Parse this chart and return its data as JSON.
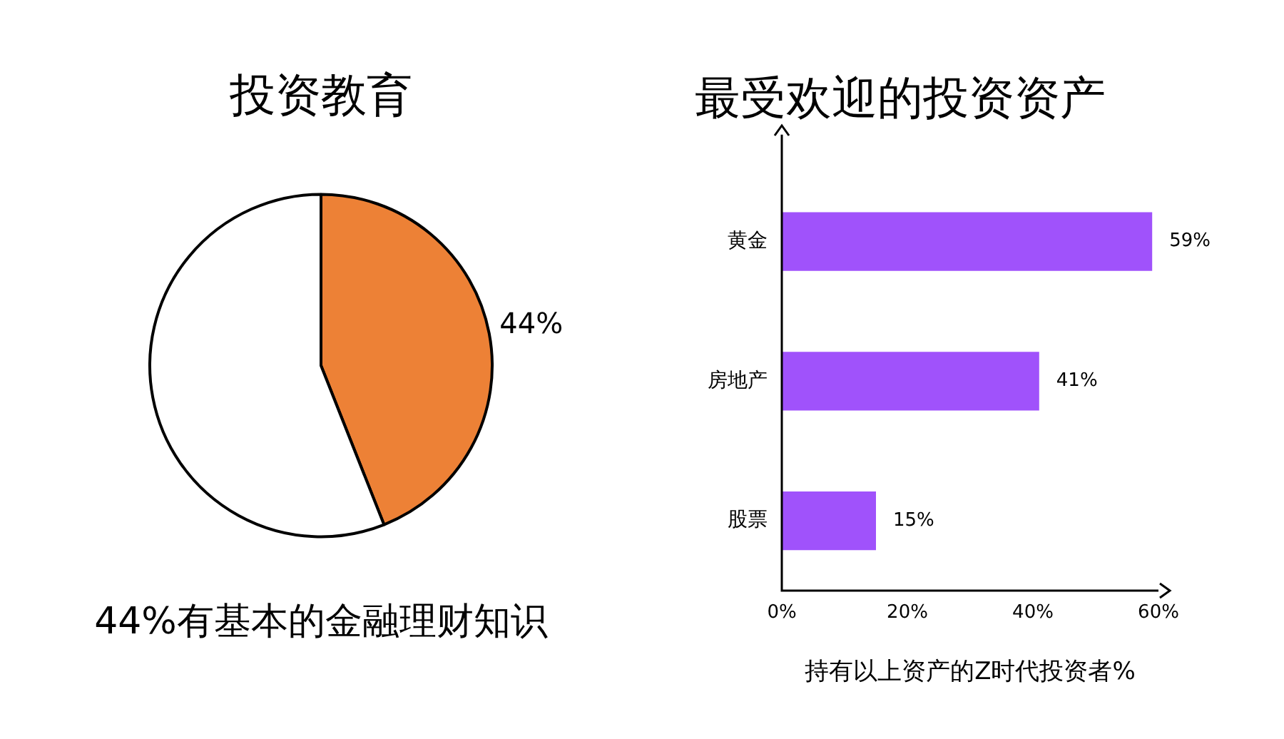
{
  "chart_data": [
    {
      "type": "pie",
      "title": "投资教育",
      "categories": [
        null,
        null
      ],
      "values": [
        44,
        56
      ],
      "colors": [
        "#ed8136",
        "#ffffff"
      ],
      "value_labels": [
        "44%",
        null
      ],
      "annotations": [
        "44%有基本的金融理财知识"
      ]
    },
    {
      "type": "bar",
      "orientation": "horizontal",
      "title": "最受欢迎的投资资产",
      "xlabel": "持有以上资产的Z时代投资者%",
      "categories": [
        "黄金",
        "房地产",
        "股票"
      ],
      "values": [
        59,
        41,
        15
      ],
      "color": "#a052fb",
      "value_labels": [
        "59%",
        "41%",
        "15%"
      ],
      "xlim": [
        0,
        60
      ],
      "xticks": [
        {
          "value": 0,
          "label": "0%"
        },
        {
          "value": 20,
          "label": "20%"
        },
        {
          "value": 40,
          "label": "40%"
        },
        {
          "value": 60,
          "label": "60%"
        }
      ]
    }
  ]
}
